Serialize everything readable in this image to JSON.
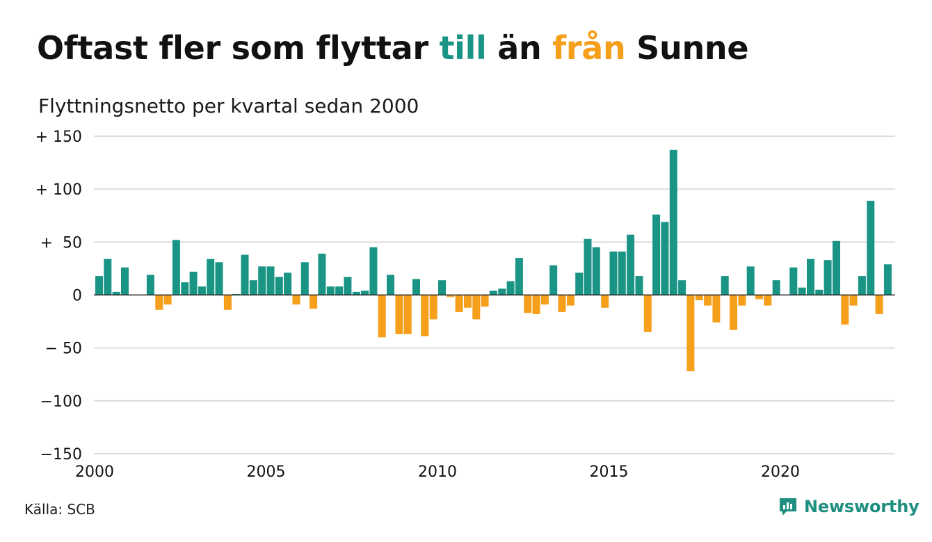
{
  "title": {
    "part1": "Oftast fler som flyttar ",
    "highlight_in": "till",
    "part2": " än ",
    "highlight_out": "från",
    "part3": " Sunne"
  },
  "subtitle": "Flyttningsnetto per kvartal sedan 2000",
  "source": "Källa: SCB",
  "brand": "Newsworthy",
  "colors": {
    "positive": "#1a9585",
    "negative": "#f59f1b",
    "grid": "#dddddd",
    "brand": "#1f8f80"
  },
  "chart_data": {
    "type": "bar",
    "x_start_year": 2000,
    "periods_per_year": 4,
    "x_tick_labels": [
      "2000",
      "2005",
      "2010",
      "2015",
      "2020"
    ],
    "y_tick_labels": [
      "+ 150",
      "+ 100",
      "+  50",
      "0",
      "− 50",
      "−100",
      "−150"
    ],
    "y_tick_values": [
      150,
      100,
      50,
      0,
      -50,
      -100,
      -150
    ],
    "ylim": [
      -150,
      150
    ],
    "values": [
      18,
      34,
      3,
      26,
      0,
      0,
      19,
      -14,
      -9,
      52,
      12,
      22,
      8,
      34,
      31,
      -14,
      1,
      38,
      14,
      27,
      27,
      17,
      21,
      -9,
      31,
      -13,
      39,
      8,
      8,
      17,
      3,
      4,
      45,
      -40,
      19,
      -37,
      -37,
      15,
      -39,
      -23,
      14,
      -2,
      -16,
      -12,
      -23,
      -11,
      4,
      6,
      13,
      35,
      -17,
      -18,
      -9,
      28,
      -16,
      -10,
      21,
      53,
      45,
      -12,
      41,
      41,
      57,
      18,
      -35,
      76,
      69,
      137,
      14,
      -72,
      -5,
      -10,
      -26,
      18,
      -33,
      -10,
      27,
      -4,
      -10,
      14,
      0,
      26,
      7,
      34,
      5,
      33,
      51,
      -28,
      -10,
      18,
      89,
      -18,
      29
    ]
  }
}
